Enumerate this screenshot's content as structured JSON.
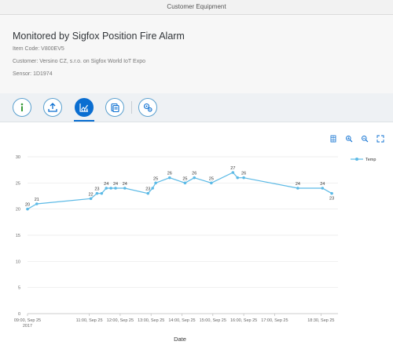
{
  "shell": {
    "title": "Customer Equipment"
  },
  "header": {
    "title": "Monitored by Sigfox Position Fire Alarm",
    "item_code": "Item Code: V800EV5",
    "customer": "Customer: Versino CZ, s.r.o. on Sigfox World IoT Expo",
    "sensor": "Sensor: 1D1974"
  },
  "toolbar": {
    "icons": [
      "info-icon",
      "upload-icon",
      "chart-icon",
      "document-icon",
      "settings-icon"
    ],
    "selected": "chart-icon"
  },
  "chart_tools": {
    "icons": [
      "table-view-icon",
      "zoom-in-icon",
      "zoom-out-icon",
      "fullscreen-icon"
    ]
  },
  "colors": {
    "accent": "#0a6ed1",
    "series": "#5cbae6"
  },
  "chart_data": {
    "type": "line",
    "xlabel": "Date",
    "ylabel": "",
    "ylim": [
      0,
      30
    ],
    "yticks": [
      0,
      5,
      10,
      15,
      20,
      25,
      30
    ],
    "grid": true,
    "legend": "top-right",
    "xticks": [
      {
        "hour": 9.0,
        "label": "09:00, Sep 25",
        "sub": "2017"
      },
      {
        "hour": 11.0,
        "label": "11:00, Sep 25"
      },
      {
        "hour": 12.0,
        "label": "12:00, Sep 25"
      },
      {
        "hour": 13.0,
        "label": "13:00, Sep 25"
      },
      {
        "hour": 14.0,
        "label": "14:00, Sep 25"
      },
      {
        "hour": 15.0,
        "label": "15:00, Sep 25"
      },
      {
        "hour": 16.0,
        "label": "16:00, Sep 25"
      },
      {
        "hour": 17.0,
        "label": "17:00, Sep 25"
      },
      {
        "hour": 18.5,
        "label": "18:30, Sep 25"
      }
    ],
    "series": [
      {
        "name": "Temp",
        "points": [
          {
            "hour": 9.0,
            "value": 20,
            "label": "20"
          },
          {
            "hour": 9.3,
            "value": 21,
            "label": "21"
          },
          {
            "hour": 11.05,
            "value": 22,
            "label": "22"
          },
          {
            "hour": 11.25,
            "value": 23,
            "label": "23"
          },
          {
            "hour": 11.4,
            "value": 23
          },
          {
            "hour": 11.55,
            "value": 24,
            "label": "24"
          },
          {
            "hour": 11.7,
            "value": 24
          },
          {
            "hour": 11.85,
            "value": 24,
            "label": "24"
          },
          {
            "hour": 12.15,
            "value": 24,
            "label": "24"
          },
          {
            "hour": 12.9,
            "value": 23,
            "label": "23"
          },
          {
            "hour": 13.05,
            "value": 24
          },
          {
            "hour": 13.15,
            "value": 25,
            "label": "25"
          },
          {
            "hour": 13.6,
            "value": 26,
            "label": "26"
          },
          {
            "hour": 14.1,
            "value": 25,
            "label": "25"
          },
          {
            "hour": 14.4,
            "value": 26,
            "label": "26"
          },
          {
            "hour": 14.95,
            "value": 25,
            "label": "25"
          },
          {
            "hour": 15.65,
            "value": 27,
            "label": "27"
          },
          {
            "hour": 15.8,
            "value": 26
          },
          {
            "hour": 16.0,
            "value": 26,
            "label": "26"
          },
          {
            "hour": 17.75,
            "value": 24,
            "label": "24"
          },
          {
            "hour": 18.55,
            "value": 24,
            "label": "24"
          },
          {
            "hour": 18.85,
            "value": 23,
            "label": "23"
          }
        ]
      }
    ]
  }
}
